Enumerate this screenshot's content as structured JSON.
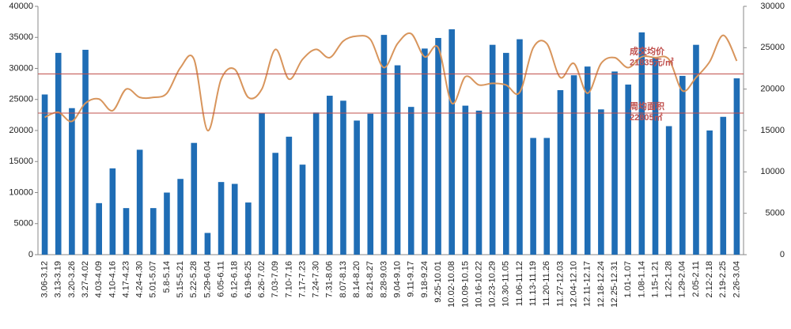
{
  "chart_data": {
    "type": "bar-line",
    "categories": [
      "3.06-3.12",
      "3.13-3.19",
      "3.20-3.26",
      "3.27-4.02",
      "4.03-4.09",
      "4.10-4.16",
      "4.17-4.23",
      "4.24-4.30",
      "5.01-5.07",
      "5.8-5.14",
      "5.15-5.21",
      "5.22-5.28",
      "5.29-6.04",
      "6.05-6.11",
      "6.12-6.18",
      "6.19-6.25",
      "6.26-7.02",
      "7.03-7.09",
      "7.10-7.16",
      "7.17-7.23",
      "7.24-7.30",
      "7.31-8.06",
      "8.07-8.13",
      "8.14-8.20",
      "8.21-8.27",
      "8.28-9.03",
      "9.04-9.10",
      "9.11-9.17",
      "9.18-9.24",
      "9.25-10.01",
      "10.02-10.08",
      "10.09-10.15",
      "10.16-10.22",
      "10.23-10.29",
      "10.30-11.05",
      "11.06-11.12",
      "11.13-11.19",
      "11.20-11.26",
      "11.27-12.03",
      "12.04-12.10",
      "12.11-12.17",
      "12.18-12.24",
      "12.25-12.31",
      "1.01-1.07",
      "1.08-1.14",
      "1.15-1.21",
      "1.22-1.28",
      "1.29-2.04",
      "2.05-2.11",
      "2.12-2.18",
      "2.19-2.25",
      "2.26-3.04"
    ],
    "series": [
      {
        "type": "bar",
        "color": "#1f6db5",
        "values": [
          25800,
          32500,
          23600,
          33000,
          8300,
          13900,
          7500,
          16900,
          7500,
          10000,
          12200,
          18000,
          3500,
          11700,
          11400,
          8400,
          22800,
          16400,
          19000,
          14500,
          22900,
          25600,
          24800,
          21600,
          22700,
          35400,
          30500,
          23800,
          33200,
          34900,
          36300,
          24000,
          23200,
          33800,
          32500,
          34700,
          18800,
          18800,
          26500,
          28900,
          30300,
          23400,
          29500,
          27400,
          35800,
          31800,
          20700,
          28800,
          33800,
          20000,
          22200,
          28400
        ]
      },
      {
        "type": "line",
        "axis": "y2",
        "color": "#d8955c",
        "values": [
          16600,
          17200,
          16100,
          18300,
          18800,
          17400,
          20000,
          19000,
          19000,
          19500,
          22600,
          23600,
          15000,
          21200,
          22400,
          19000,
          20000,
          24800,
          21200,
          23600,
          24800,
          23800,
          25800,
          26400,
          26000,
          22600,
          25500,
          26700,
          23900,
          25000,
          18300,
          21500,
          20500,
          20700,
          20500,
          19600,
          25000,
          25500,
          21400,
          23100,
          19500,
          23100,
          23800,
          22600,
          23900,
          23800,
          23600,
          19800,
          21400,
          23300,
          26500,
          23400
        ]
      }
    ],
    "reference_lines": [
      {
        "name": "成交均价",
        "value": 21835,
        "value_label": "21835元/㎡",
        "axis": "y2",
        "color": "#c0504d"
      },
      {
        "name": "周均面积",
        "value": 22805,
        "value_label": "22805㎡",
        "axis": "y",
        "color": "#c0504d"
      }
    ],
    "ylim": [
      0,
      40000
    ],
    "yticks": [
      0,
      5000,
      10000,
      15000,
      20000,
      25000,
      30000,
      35000,
      40000
    ],
    "y2lim": [
      0,
      30000
    ],
    "y2ticks": [
      0,
      5000,
      10000,
      15000,
      20000,
      25000,
      30000
    ],
    "grid": false
  }
}
